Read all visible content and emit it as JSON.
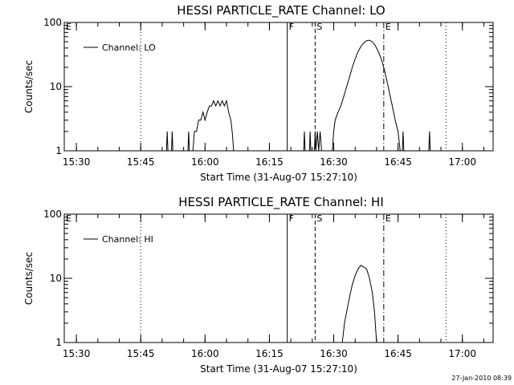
{
  "chart_data": [
    {
      "type": "line",
      "title": "HESSI PARTICLE_RATE Channel: LO",
      "xlabel": "Start Time (31-Aug-07 15:27:10)",
      "ylabel": "Counts/sec",
      "y_scale": "log",
      "xlim": [
        "15:27:10",
        "17:07:10"
      ],
      "ylim": [
        1,
        100
      ],
      "x_ticks": [
        "15:30",
        "15:45",
        "16:00",
        "16:15",
        "16:30",
        "16:45",
        "17:00"
      ],
      "y_ticks": [
        "1",
        "10",
        "100"
      ],
      "legend": {
        "label": "Channel: LO",
        "placement": "top-left"
      },
      "markers": [
        {
          "label": "E",
          "time": "15:27:10",
          "style": "none"
        },
        {
          "label": "",
          "time": "15:45:00",
          "style": "dotted"
        },
        {
          "label": "F",
          "time": "16:19:10",
          "style": "solid"
        },
        {
          "label": "S",
          "time": "16:25:40",
          "style": "dashed"
        },
        {
          "label": "E",
          "time": "16:41:40",
          "style": "dashdot"
        },
        {
          "label": "",
          "time": "16:56:10",
          "style": "dotted"
        }
      ],
      "series": [
        {
          "name": "Channel: LO",
          "points": [
            [
              "15:51:00",
              1
            ],
            [
              "15:51:10",
              2
            ],
            [
              "15:51:20",
              1
            ],
            [
              "15:52:10",
              1
            ],
            [
              "15:52:20",
              2
            ],
            [
              "15:52:30",
              1
            ],
            [
              "15:56:00",
              1
            ],
            [
              "15:56:10",
              2
            ],
            [
              "15:56:20",
              1
            ],
            [
              "15:57:10",
              1
            ],
            [
              "15:57:30",
              2
            ],
            [
              "15:58:00",
              2
            ],
            [
              "15:58:30",
              3
            ],
            [
              "15:59:00",
              3
            ],
            [
              "15:59:30",
              4
            ],
            [
              "16:00:00",
              3
            ],
            [
              "16:00:30",
              4
            ],
            [
              "16:01:00",
              5
            ],
            [
              "16:01:30",
              5
            ],
            [
              "16:02:00",
              6
            ],
            [
              "16:02:30",
              5
            ],
            [
              "16:03:00",
              6
            ],
            [
              "16:03:30",
              5
            ],
            [
              "16:04:00",
              6
            ],
            [
              "16:04:30",
              5
            ],
            [
              "16:05:00",
              6
            ],
            [
              "16:05:30",
              4
            ],
            [
              "16:06:00",
              3
            ],
            [
              "16:06:20",
              2
            ],
            [
              "16:06:40",
              1
            ],
            [
              "16:23:00",
              1
            ],
            [
              "16:23:10",
              2
            ],
            [
              "16:23:20",
              1
            ],
            [
              "16:24:20",
              1
            ],
            [
              "16:24:30",
              2
            ],
            [
              "16:24:40",
              1
            ],
            [
              "16:25:30",
              1
            ],
            [
              "16:25:40",
              2
            ],
            [
              "16:25:50",
              1
            ],
            [
              "16:26:10",
              2
            ],
            [
              "16:26:30",
              1
            ],
            [
              "16:26:50",
              2
            ],
            [
              "16:27:10",
              1
            ],
            [
              "16:29:40",
              1
            ],
            [
              "16:30:00",
              2
            ],
            [
              "16:30:20",
              3
            ],
            [
              "16:31:00",
              4
            ],
            [
              "16:31:40",
              5
            ],
            [
              "16:32:20",
              7
            ],
            [
              "16:33:00",
              10
            ],
            [
              "16:33:40",
              14
            ],
            [
              "16:34:20",
              20
            ],
            [
              "16:35:00",
              27
            ],
            [
              "16:35:40",
              35
            ],
            [
              "16:36:20",
              42
            ],
            [
              "16:37:00",
              48
            ],
            [
              "16:37:40",
              52
            ],
            [
              "16:38:20",
              53
            ],
            [
              "16:39:00",
              50
            ],
            [
              "16:39:40",
              44
            ],
            [
              "16:40:20",
              36
            ],
            [
              "16:41:00",
              28
            ],
            [
              "16:41:40",
              20
            ],
            [
              "16:42:20",
              13
            ],
            [
              "16:43:00",
              8
            ],
            [
              "16:43:40",
              5
            ],
            [
              "16:44:20",
              3
            ],
            [
              "16:45:00",
              2
            ],
            [
              "16:45:30",
              1
            ],
            [
              "16:46:00",
              1
            ],
            [
              "16:46:10",
              2
            ],
            [
              "16:46:20",
              1
            ],
            [
              "16:52:10",
              1
            ],
            [
              "16:52:20",
              2
            ],
            [
              "16:52:30",
              1
            ]
          ]
        }
      ]
    },
    {
      "type": "line",
      "title": "HESSI PARTICLE_RATE Channel: HI",
      "xlabel": "Start Time (31-Aug-07 15:27:10)",
      "ylabel": "Counts/sec",
      "y_scale": "log",
      "xlim": [
        "15:27:10",
        "17:07:10"
      ],
      "ylim": [
        1,
        100
      ],
      "x_ticks": [
        "15:30",
        "15:45",
        "16:00",
        "16:15",
        "16:30",
        "16:45",
        "17:00"
      ],
      "y_ticks": [
        "1",
        "10",
        "100"
      ],
      "legend": {
        "label": "Channel: HI",
        "placement": "top-left"
      },
      "markers": [
        {
          "label": "E",
          "time": "15:27:10",
          "style": "none"
        },
        {
          "label": "",
          "time": "15:45:00",
          "style": "dotted"
        },
        {
          "label": "F",
          "time": "16:19:10",
          "style": "solid"
        },
        {
          "label": "S",
          "time": "16:25:40",
          "style": "dashed"
        },
        {
          "label": "E",
          "time": "16:41:40",
          "style": "dashdot"
        },
        {
          "label": "",
          "time": "16:56:10",
          "style": "dotted"
        }
      ],
      "series": [
        {
          "name": "Channel: HI",
          "points": [
            [
              "16:32:00",
              1
            ],
            [
              "16:32:30",
              2
            ],
            [
              "16:33:00",
              3
            ],
            [
              "16:33:40",
              5
            ],
            [
              "16:34:20",
              8
            ],
            [
              "16:35:00",
              11
            ],
            [
              "16:35:40",
              14
            ],
            [
              "16:36:20",
              16
            ],
            [
              "16:37:00",
              15
            ],
            [
              "16:37:40",
              14
            ],
            [
              "16:38:20",
              10
            ],
            [
              "16:39:00",
              6
            ],
            [
              "16:39:30",
              3
            ],
            [
              "16:40:00",
              1
            ]
          ]
        }
      ]
    }
  ],
  "footer": {
    "timestamp": "27-Jan-2010 08:39"
  },
  "style": {
    "line_color": "#000000",
    "background": "#ffffff"
  }
}
